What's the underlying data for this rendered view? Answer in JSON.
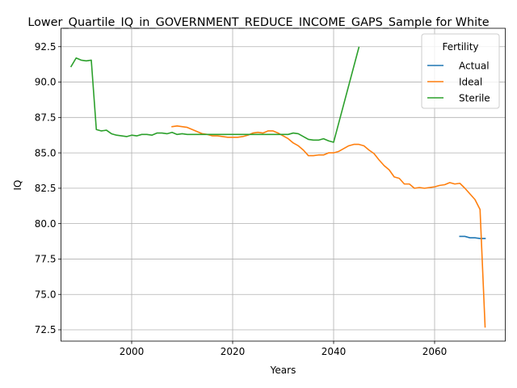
{
  "chart_data": {
    "type": "line",
    "title": "Lower_Quartile_IQ_in_GOVERNMENT_REDUCE_INCOME_GAPS_Sample for White",
    "xlabel": "Years",
    "ylabel": "IQ",
    "xlim": [
      1986,
      2074
    ],
    "ylim": [
      71.7,
      93.8
    ],
    "xticks": [
      2000,
      2020,
      2040,
      2060
    ],
    "yticks": [
      72.5,
      75.0,
      77.5,
      80.0,
      82.5,
      85.0,
      87.5,
      90.0,
      92.5
    ],
    "ytick_labels": [
      "72.5",
      "75.0",
      "77.5",
      "80.0",
      "82.5",
      "85.0",
      "87.5",
      "90.0",
      "92.5"
    ],
    "grid": true,
    "legend": {
      "title": "Fertility",
      "placement": "top-right"
    },
    "series": [
      {
        "name": "Actual",
        "color": "#1f77b4",
        "x": [
          2065,
          2066,
          2067,
          2068,
          2069,
          2070
        ],
        "y": [
          79.1,
          79.1,
          79.0,
          79.0,
          78.95,
          78.95
        ]
      },
      {
        "name": "Ideal",
        "color": "#ff7f0e",
        "x": [
          2008,
          2009,
          2010,
          2011,
          2012,
          2013,
          2014,
          2015,
          2016,
          2017,
          2018,
          2019,
          2020,
          2021,
          2022,
          2023,
          2024,
          2025,
          2026,
          2027,
          2028,
          2029,
          2030,
          2031,
          2032,
          2033,
          2034,
          2035,
          2036,
          2037,
          2038,
          2039,
          2040,
          2041,
          2042,
          2043,
          2044,
          2045,
          2046,
          2047,
          2048,
          2049,
          2050,
          2051,
          2052,
          2053,
          2054,
          2055,
          2056,
          2057,
          2058,
          2059,
          2060,
          2061,
          2062,
          2063,
          2064,
          2065,
          2066,
          2067,
          2068,
          2069,
          2070
        ],
        "y": [
          86.85,
          86.9,
          86.85,
          86.8,
          86.65,
          86.5,
          86.35,
          86.3,
          86.2,
          86.2,
          86.15,
          86.1,
          86.1,
          86.1,
          86.15,
          86.25,
          86.4,
          86.45,
          86.4,
          86.55,
          86.55,
          86.4,
          86.2,
          86.0,
          85.7,
          85.5,
          85.2,
          84.8,
          84.8,
          84.85,
          84.85,
          85.0,
          85.0,
          85.1,
          85.3,
          85.5,
          85.6,
          85.6,
          85.5,
          85.2,
          84.95,
          84.5,
          84.1,
          83.8,
          83.3,
          83.2,
          82.8,
          82.8,
          82.5,
          82.55,
          82.5,
          82.55,
          82.6,
          82.7,
          82.75,
          82.9,
          82.8,
          82.85,
          82.5,
          82.1,
          81.7,
          81.0,
          72.7
        ]
      },
      {
        "name": "Sterile",
        "color": "#2ca02c",
        "x": [
          1988,
          1989,
          1990,
          1991,
          1992,
          1993,
          1994,
          1995,
          1996,
          1997,
          1998,
          1999,
          2000,
          2001,
          2002,
          2003,
          2004,
          2005,
          2006,
          2007,
          2008,
          2009,
          2010,
          2011,
          2012,
          2013,
          2014,
          2015,
          2016,
          2017,
          2018,
          2019,
          2020,
          2021,
          2022,
          2023,
          2024,
          2025,
          2026,
          2027,
          2028,
          2029,
          2030,
          2031,
          2032,
          2033,
          2034,
          2035,
          2036,
          2037,
          2038,
          2039,
          2040,
          2045
        ],
        "y": [
          91.1,
          91.7,
          91.55,
          91.5,
          91.55,
          86.65,
          86.55,
          86.6,
          86.35,
          86.25,
          86.2,
          86.15,
          86.25,
          86.2,
          86.3,
          86.3,
          86.25,
          86.4,
          86.4,
          86.35,
          86.45,
          86.3,
          86.35,
          86.3,
          86.3,
          86.3,
          86.3,
          86.3,
          86.3,
          86.3,
          86.3,
          86.3,
          86.3,
          86.3,
          86.3,
          86.3,
          86.3,
          86.3,
          86.3,
          86.3,
          86.3,
          86.3,
          86.3,
          86.3,
          86.4,
          86.35,
          86.15,
          85.95,
          85.9,
          85.9,
          86.0,
          85.85,
          85.75,
          92.45
        ]
      }
    ]
  }
}
